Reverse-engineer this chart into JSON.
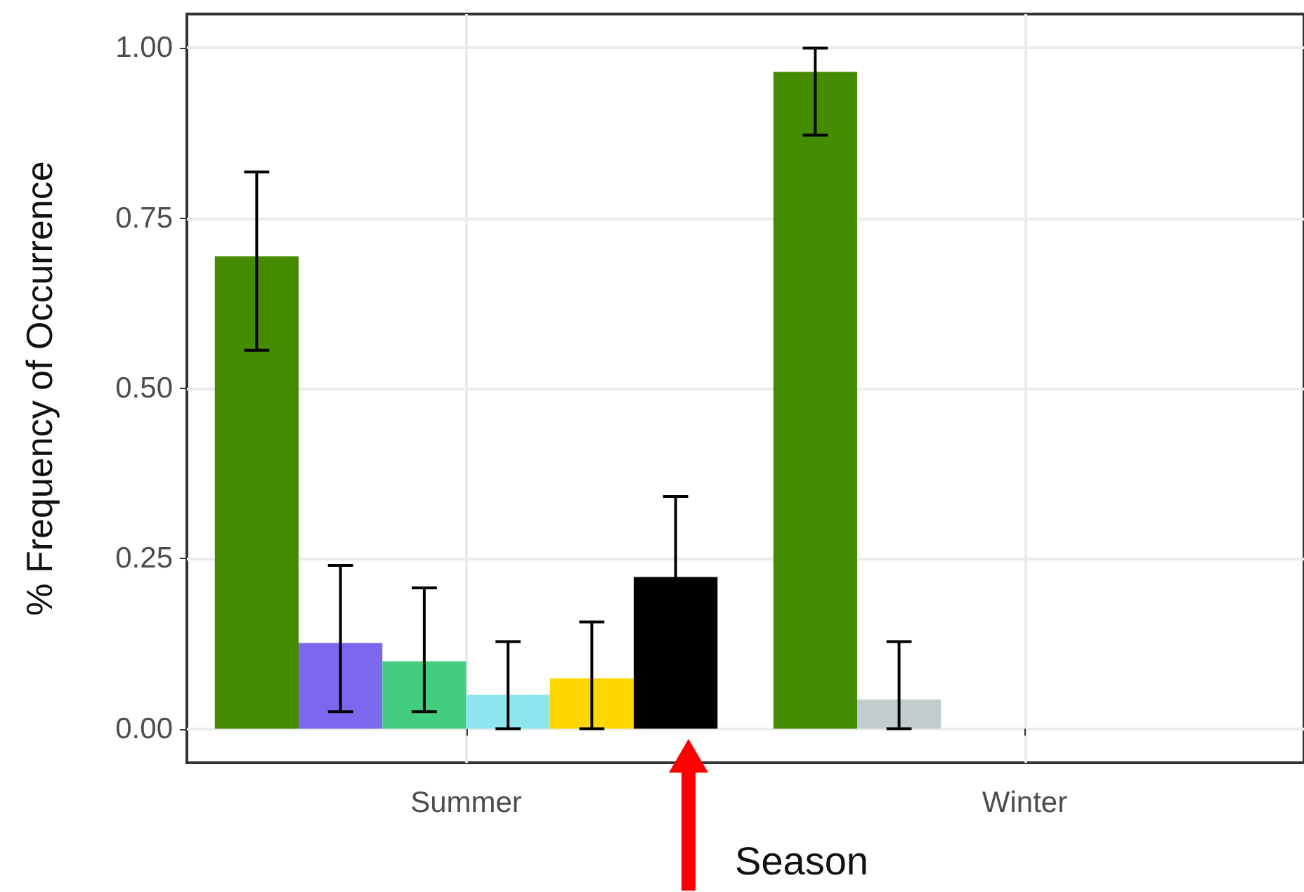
{
  "chart_data": {
    "type": "bar",
    "xlabel": "Season",
    "ylabel": "% Frequency of Occurrence",
    "categories": [
      "Summer",
      "Winter"
    ],
    "series": [
      {
        "color": "#458b00",
        "values": [
          0.694,
          0.965
        ],
        "errors": [
          [
            0.556,
            0.818
          ],
          [
            0.872,
            1.0
          ]
        ]
      },
      {
        "colors": [
          "#7b68ee",
          "#c1cdcd"
        ],
        "values": [
          0.126,
          0.043
        ],
        "errors": [
          [
            0.025,
            0.24
          ],
          [
            0,
            0.128
          ]
        ]
      },
      {
        "color": "#43cd80",
        "values": [
          0.099,
          null
        ],
        "errors": [
          [
            0.025,
            0.207
          ],
          null
        ]
      },
      {
        "color": "#8ee5ee",
        "values": [
          0.05,
          null
        ],
        "errors": [
          [
            0,
            0.128
          ],
          null
        ]
      },
      {
        "color": "#ffd700",
        "values": [
          0.074,
          null
        ],
        "errors": [
          [
            0,
            0.157
          ],
          null
        ]
      },
      {
        "color": "#000000",
        "values": [
          0.223,
          null
        ],
        "errors": [
          0.118,
          null
        ]
      }
    ],
    "ylim": [
      -0.05,
      1.05
    ],
    "yticks": [
      {
        "value": 0,
        "label": "0.00"
      },
      {
        "value": 0.25,
        "label": "0.25"
      },
      {
        "value": 0.5,
        "label": "0.50"
      },
      {
        "value": 0.75,
        "label": "0.75"
      },
      {
        "value": 1,
        "label": "1.00"
      }
    ],
    "grid": true
  }
}
